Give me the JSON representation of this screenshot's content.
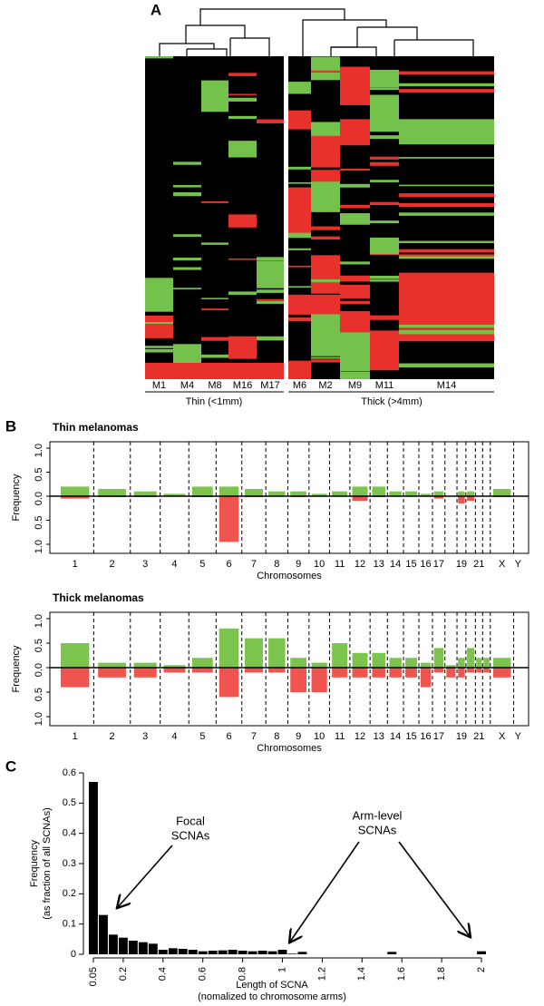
{
  "chart_data": [
    {
      "type": "heatmap",
      "panel": "A",
      "columns": [
        "M1",
        "M4",
        "M8",
        "M16",
        "M17",
        "M6",
        "M2",
        "M9",
        "M11",
        "M14"
      ],
      "groups": [
        "Thin (<1mm)",
        "Thick (>4mm)"
      ]
    },
    {
      "type": "bar",
      "panel": "B",
      "title": "Thin melanomas",
      "ylabel": "Frequency",
      "xlabel": "Chromosomes",
      "categories": [
        "1",
        "2",
        "3",
        "4",
        "5",
        "6",
        "7",
        "8",
        "9",
        "10",
        "11",
        "12",
        "13",
        "14",
        "15",
        "16",
        "17",
        null,
        "19",
        null,
        "21",
        null,
        "X",
        "Y"
      ],
      "series": [
        {
          "color": "#7cc44e",
          "values": [
            0.2,
            0.15,
            0.1,
            0.05,
            0.2,
            0.2,
            0.15,
            0.1,
            0.1,
            0.05,
            0.1,
            0.2,
            0.2,
            0.1,
            0.1,
            0.05,
            0.1,
            0,
            0.1,
            0.1,
            0,
            0,
            0.15,
            0
          ]
        },
        {
          "color": "#f0544f",
          "values": [
            -0.05,
            -0.02,
            -0.02,
            0,
            -0.02,
            -0.95,
            -0.02,
            0,
            -0.02,
            0,
            0,
            -0.1,
            -0.02,
            0,
            0,
            0,
            -0.05,
            0,
            -0.15,
            -0.1,
            0,
            0,
            -0.02,
            0
          ]
        }
      ],
      "ylim": [
        -1,
        1
      ],
      "yticks": [
        {
          "value": -1,
          "label": "1.0"
        },
        {
          "value": -0.5,
          "label": "0.5"
        },
        {
          "value": 0,
          "label": "0.0"
        },
        {
          "value": 0.5,
          "label": "0.5"
        },
        {
          "value": 1,
          "label": "1.0"
        }
      ]
    },
    {
      "type": "bar",
      "title": "Thick melanomas",
      "ylabel": "Frequency",
      "xlabel": "Chromosomes",
      "categories": [
        "1",
        "2",
        "3",
        "4",
        "5",
        "6",
        "7",
        "8",
        "9",
        "10",
        "11",
        "12",
        "13",
        "14",
        "15",
        "16",
        "17",
        null,
        "19",
        null,
        "21",
        null,
        "X",
        "Y"
      ],
      "series": [
        {
          "color": "#7cc44e",
          "values": [
            0.5,
            0.1,
            0.1,
            0.05,
            0.2,
            0.8,
            0.6,
            0.6,
            0.2,
            0.1,
            0.5,
            0.3,
            0.3,
            0.2,
            0.2,
            0.1,
            0.4,
            0.05,
            0.2,
            0.4,
            0.2,
            0.2,
            0.2,
            0
          ]
        },
        {
          "color": "#f0544f",
          "values": [
            -0.4,
            -0.2,
            -0.2,
            -0.1,
            -0.1,
            -0.6,
            -0.1,
            -0.1,
            -0.5,
            -0.5,
            -0.2,
            -0.2,
            -0.2,
            -0.2,
            -0.2,
            -0.4,
            -0.1,
            -0.2,
            -0.2,
            -0.1,
            -0.1,
            -0.1,
            -0.2,
            0
          ]
        }
      ],
      "ylim": [
        -1,
        1
      ],
      "yticks": [
        {
          "value": -1,
          "label": "1.0"
        },
        {
          "value": -0.5,
          "label": "0.5"
        },
        {
          "value": 0,
          "label": "0.0"
        },
        {
          "value": 0.5,
          "label": "0.5"
        },
        {
          "value": 1,
          "label": "1.0"
        }
      ]
    },
    {
      "type": "histogram",
      "panel": "C",
      "ylabel": [
        "Frequency",
        "(as fraction of all SCNAs)"
      ],
      "xlabel": [
        "Length of SCNA",
        "(nomalized to chromosome arms)"
      ],
      "annotations": [
        [
          "Focal",
          "SCNAs"
        ],
        [
          "Arm-level",
          "SCNAs"
        ]
      ],
      "color": "#000000",
      "x": [
        0.05,
        0.1,
        0.15,
        0.2,
        0.25,
        0.3,
        0.35,
        0.4,
        0.45,
        0.5,
        0.55,
        0.6,
        0.65,
        0.7,
        0.75,
        0.8,
        0.85,
        0.9,
        0.95,
        1.0,
        1.05,
        1.1,
        1.55,
        2.0
      ],
      "values": [
        0.57,
        0.13,
        0.065,
        0.055,
        0.045,
        0.04,
        0.035,
        0.015,
        0.02,
        0.018,
        0.015,
        0.01,
        0.012,
        0.013,
        0.015,
        0.012,
        0.01,
        0.012,
        0.01,
        0.015,
        0.002,
        0.008,
        0.008,
        0.01
      ],
      "xlim": [
        0,
        2.05
      ],
      "xticks": [
        0.05,
        0.2,
        0.4,
        0.6,
        0.8,
        1,
        1.2,
        1.4,
        1.6,
        1.8,
        2
      ],
      "ylim": [
        0,
        0.6
      ],
      "yticks": [
        0,
        0.1,
        0.2,
        0.3,
        0.4,
        0.5,
        0.6
      ]
    }
  ]
}
